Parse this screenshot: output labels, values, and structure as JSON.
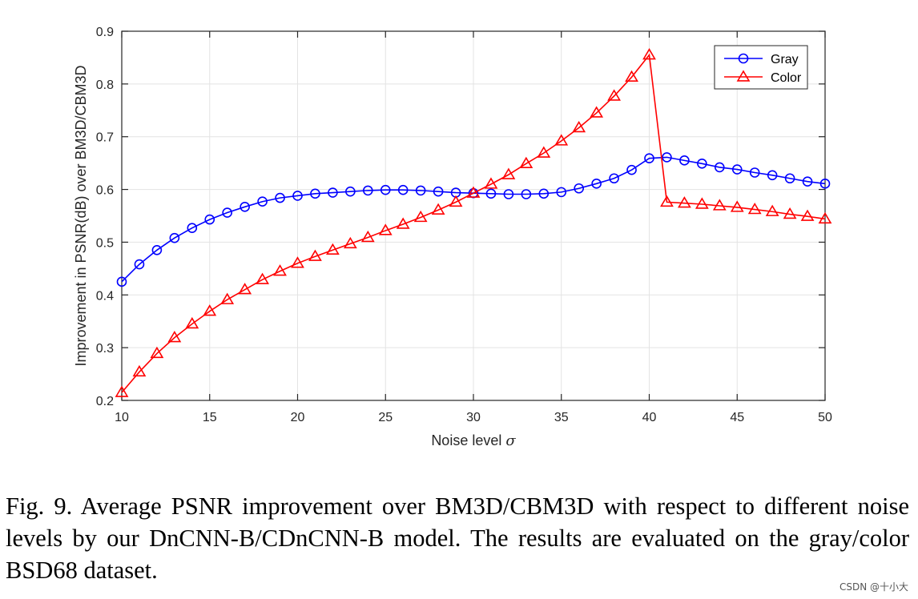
{
  "chart_data": {
    "type": "line",
    "title": "",
    "xlabel": "Noise level",
    "xlabel_symbol": "σ",
    "ylabel": "Improvement in PSNR(dB) over BM3D/CBM3D",
    "xlim": [
      10,
      50
    ],
    "ylim": [
      0.2,
      0.9
    ],
    "xticks": [
      "10",
      "15",
      "20",
      "25",
      "30",
      "35",
      "40",
      "45",
      "50"
    ],
    "yticks": [
      "0.2",
      "0.3",
      "0.4",
      "0.5",
      "0.6",
      "0.7",
      "0.8",
      "0.9"
    ],
    "grid": true,
    "legend_position": "top-right",
    "x": [
      10,
      11,
      12,
      13,
      14,
      15,
      16,
      17,
      18,
      19,
      20,
      21,
      22,
      23,
      24,
      25,
      26,
      27,
      28,
      29,
      30,
      31,
      32,
      33,
      34,
      35,
      36,
      37,
      38,
      39,
      40,
      41,
      42,
      43,
      44,
      45,
      46,
      47,
      48,
      49,
      50
    ],
    "series": [
      {
        "name": "Gray",
        "color": "#0000ff",
        "marker": "circle",
        "values": [
          0.425,
          0.458,
          0.485,
          0.508,
          0.527,
          0.543,
          0.556,
          0.567,
          0.577,
          0.584,
          0.588,
          0.592,
          0.594,
          0.596,
          0.598,
          0.599,
          0.599,
          0.598,
          0.596,
          0.594,
          0.593,
          0.592,
          0.591,
          0.591,
          0.592,
          0.595,
          0.602,
          0.611,
          0.621,
          0.637,
          0.659,
          0.661,
          0.655,
          0.649,
          0.642,
          0.638,
          0.632,
          0.627,
          0.621,
          0.615,
          0.611
        ]
      },
      {
        "name": "Color",
        "color": "#ff0000",
        "marker": "triangle",
        "values": [
          0.215,
          0.254,
          0.289,
          0.319,
          0.345,
          0.369,
          0.391,
          0.41,
          0.429,
          0.445,
          0.46,
          0.473,
          0.485,
          0.497,
          0.509,
          0.522,
          0.534,
          0.547,
          0.561,
          0.576,
          0.593,
          0.61,
          0.628,
          0.649,
          0.669,
          0.692,
          0.717,
          0.745,
          0.777,
          0.813,
          0.855,
          0.576,
          0.574,
          0.572,
          0.569,
          0.566,
          0.562,
          0.558,
          0.553,
          0.549,
          0.544
        ]
      }
    ]
  },
  "caption": "Fig. 9.  Average PSNR improvement over BM3D/CBM3D with respect to different noise levels by our DnCNN-B/CDnCNN-B model. The results are evaluated on the gray/color BSD68 dataset.",
  "watermark": "CSDN @十小大"
}
